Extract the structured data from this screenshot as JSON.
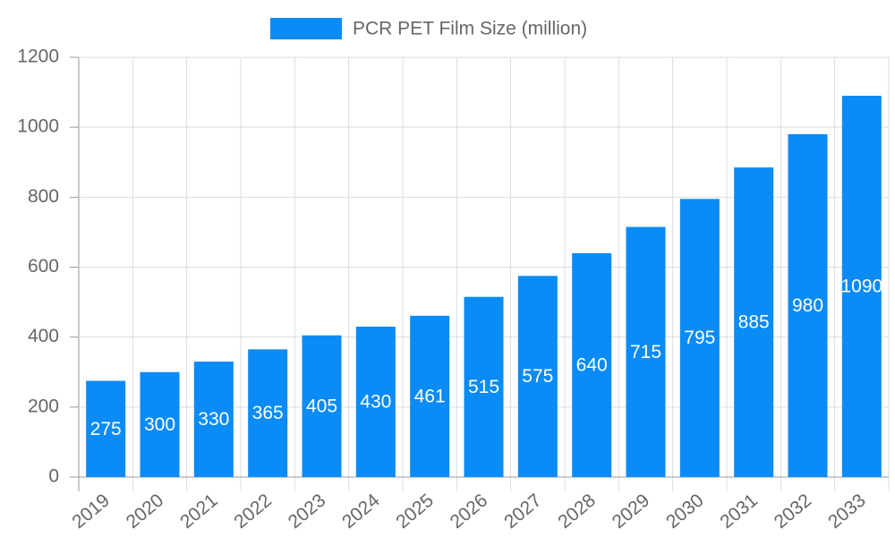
{
  "chart_data": {
    "type": "bar",
    "categories": [
      "2019",
      "2020",
      "2021",
      "2022",
      "2023",
      "2024",
      "2025",
      "2026",
      "2027",
      "2028",
      "2029",
      "2030",
      "2031",
      "2032",
      "2033"
    ],
    "series": [
      {
        "name": "PCR PET Film Size (million)",
        "color": "#0a8bf5",
        "values": [
          275,
          300,
          330,
          365,
          405,
          430,
          461,
          515,
          575,
          640,
          715,
          795,
          885,
          980,
          1090
        ]
      }
    ],
    "ylim": [
      0,
      1200
    ],
    "yticks": [
      0,
      200,
      400,
      600,
      800,
      1000,
      1200
    ],
    "grid": true,
    "legend": "top"
  }
}
